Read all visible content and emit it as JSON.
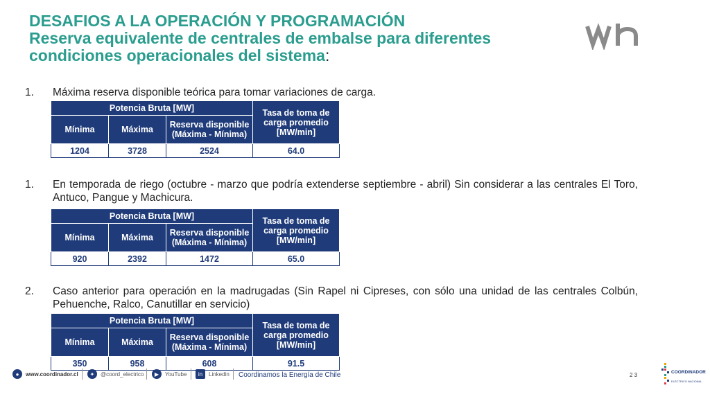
{
  "header": {
    "title_line1": "DESAFIOS A LA OPERACIÓN Y PROGRAMACIÓN",
    "title_line2": "Reserva equivalente de centrales de embalse para diferentes",
    "title_line3": "condiciones operacionales del sistema",
    "title_colon": ":",
    "logo_text": "Wh"
  },
  "table_headers": {
    "group": "Potencia Bruta [MW]",
    "min": "Mínima",
    "max": "Máxima",
    "reserve_l1": "Reserva disponible",
    "reserve_l2": "(Máxima - Mínima)",
    "rate_l1": "Tasa de toma de",
    "rate_l2": "carga promedio",
    "rate_l3": "[MW/min]"
  },
  "items": [
    {
      "num": "1.",
      "text": "Máxima reserva disponible teórica para tomar variaciones de carga.",
      "row": {
        "min": "1204",
        "max": "3728",
        "reserve": "2524",
        "rate": "64.0"
      }
    },
    {
      "num": "1.",
      "text": "En temporada de riego (octubre - marzo que podría extenderse septiembre - abril) Sin considerar a las centrales El Toro, Antuco, Pangue y Machicura.",
      "row": {
        "min": "920",
        "max": "2392",
        "reserve": "1472",
        "rate": "65.0"
      }
    },
    {
      "num": "2.",
      "text": "Caso anterior para operación en la madrugadas (Sin Rapel ni Cipreses, con sólo una unidad de las centrales Colbún, Pehuenche, Ralco, Canutillar en servicio)",
      "row": {
        "min": "350",
        "max": "958",
        "reserve": "608",
        "rate": "91.5"
      }
    }
  ],
  "footer": {
    "website": "www.coordinador.cl",
    "twitter": "@coord_electrico",
    "youtube": "YouTube",
    "linkedin": "Linkedin",
    "tagline": "Coordinamos la Energía de Chile",
    "page": "2 3",
    "brand": "COORDINADOR",
    "brand_sub": "ELÉCTRICO NACIONAL",
    "brand_color": "#1f3b7a",
    "title_color": "#2a9d8f"
  }
}
